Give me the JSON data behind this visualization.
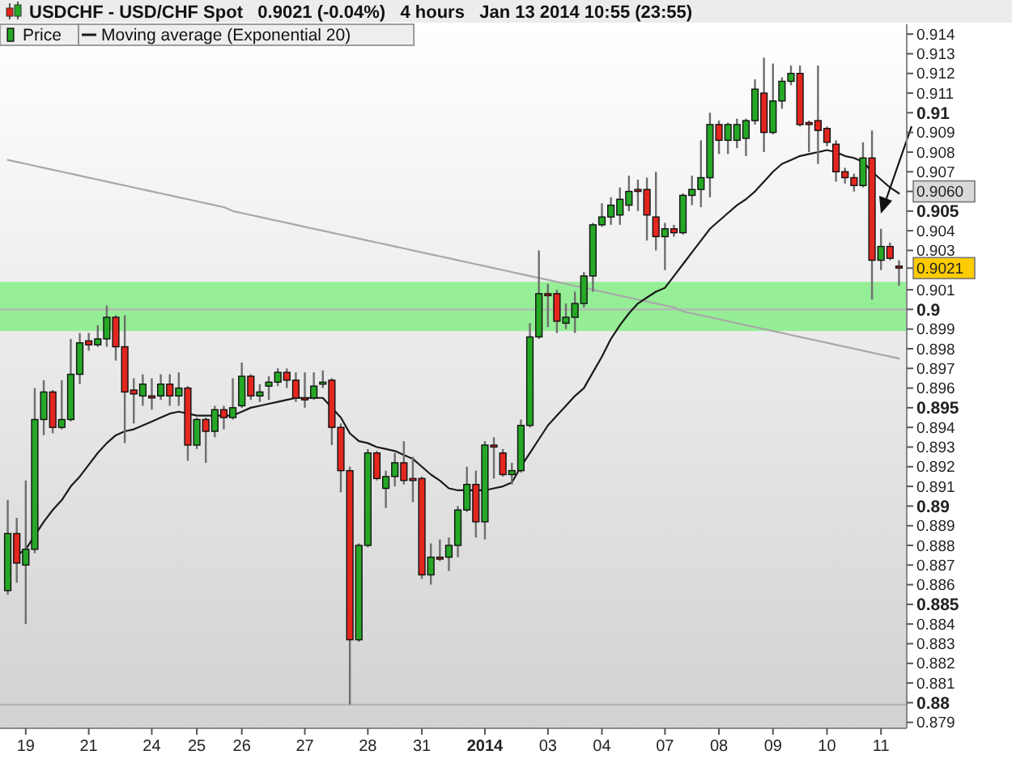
{
  "chart_data": {
    "type": "candlestick",
    "title": "USDCHF - USD/CHF Spot   0.9021 (-0.04%)   4 hours   Jan 13 2014 10:55 (23:55)",
    "legend": "top left",
    "categories": [
      null,
      null,
      "19",
      null,
      null,
      null,
      null,
      null,
      null,
      "21",
      null,
      null,
      null,
      null,
      null,
      null,
      "24",
      null,
      null,
      null,
      null,
      "25",
      null,
      null,
      null,
      null,
      "26",
      null,
      null,
      null,
      null,
      null,
      null,
      "27",
      null,
      null,
      null,
      null,
      null,
      null,
      "28",
      null,
      null,
      null,
      null,
      null,
      "31",
      null,
      null,
      null,
      null,
      null,
      null,
      "2014",
      null,
      null,
      null,
      null,
      null,
      null,
      "03",
      null,
      null,
      null,
      null,
      null,
      "04",
      null,
      null,
      null,
      null,
      null,
      null,
      "07",
      null,
      null,
      null,
      null,
      null,
      "08",
      null,
      null,
      null,
      null,
      null,
      "09",
      null,
      null,
      null,
      null,
      null,
      "10",
      null,
      null,
      null,
      null,
      null,
      "11",
      null,
      null
    ],
    "ylim": [
      0.8787,
      0.9145
    ],
    "yticks": [
      0.879,
      0.88,
      0.881,
      0.882,
      0.883,
      0.884,
      0.885,
      0.886,
      0.887,
      0.888,
      0.889,
      0.89,
      0.891,
      0.892,
      0.893,
      0.894,
      0.895,
      0.896,
      0.897,
      0.898,
      0.899,
      0.9,
      0.901,
      {
        "value": 0.9021,
        "label": "0.9021"
      },
      0.903,
      0.904,
      0.905,
      {
        "value": 0.906,
        "label": "0.9060"
      },
      0.907,
      0.908,
      0.909,
      0.91,
      0.911,
      0.912,
      0.913,
      0.914
    ],
    "bands": [
      {
        "axis": "y",
        "from": 0.8989,
        "to": 0.9014,
        "color": "#90ee90"
      }
    ],
    "ref_lines": [
      {
        "axis": "y",
        "value": 0.9,
        "color": "#b4b4b4"
      },
      {
        "axis": "y",
        "value": 0.8799,
        "color": "#b4b4b4"
      }
    ],
    "series": [
      {
        "type": "line",
        "color": "#a8a8a8",
        "values": [
          0.9076,
          0.9075,
          0.9074,
          0.9073,
          0.9072,
          0.9071,
          0.907,
          0.9069,
          0.9068,
          0.9067,
          0.9066,
          0.9065,
          0.9064,
          0.9063,
          0.9062,
          0.9061,
          0.906,
          0.9059,
          0.9058,
          0.9057,
          0.9056,
          0.9055,
          0.9054,
          0.9053,
          0.9052,
          0.905,
          0.9049,
          0.9048,
          0.9047,
          0.9046,
          0.9045,
          0.9044,
          0.9043,
          0.9042,
          0.9041,
          0.904,
          0.9039,
          0.9038,
          0.9037,
          0.9036,
          0.9035,
          0.9034,
          0.9033,
          0.9032,
          0.9031,
          0.903,
          0.9029,
          0.9028,
          0.9027,
          0.9026,
          0.9025,
          0.9024,
          0.9023,
          0.9022,
          0.9021,
          0.902,
          0.9019,
          0.9018,
          0.9017,
          0.9016,
          0.9015,
          0.9014,
          0.9013,
          0.9012,
          0.9011,
          0.901,
          0.9009,
          0.9008,
          0.9007,
          0.9006,
          0.9005,
          0.9004,
          0.9003,
          0.9002,
          0.9001,
          0.8999,
          0.8998,
          0.8997,
          0.8996,
          0.8995,
          0.8994,
          0.8993,
          0.8992,
          0.8991,
          0.899,
          0.8989,
          0.8988,
          0.8987,
          0.8986,
          0.8985,
          0.8984,
          0.8983,
          0.8982,
          0.8981,
          0.898,
          0.8979,
          0.8978,
          0.8977,
          0.8976,
          0.8975
        ]
      },
      {
        "name": "Moving average (Exponential 20)",
        "type": "line",
        "color": "#1a1a1a",
        "values": [
          null,
          0.8875,
          0.8878,
          0.8885,
          0.8892,
          0.8898,
          0.8903,
          0.891,
          0.8915,
          0.8921,
          0.8927,
          0.8932,
          0.8936,
          0.8938,
          0.8939,
          0.8941,
          0.8943,
          0.8945,
          0.8947,
          0.8948,
          0.8947,
          0.8946,
          0.8946,
          0.8946,
          0.8946,
          0.8946,
          0.8948,
          0.895,
          0.8951,
          0.8952,
          0.8953,
          0.8954,
          0.8955,
          0.8955,
          0.8955,
          0.8955,
          0.895,
          0.8945,
          0.8937,
          0.8933,
          0.8932,
          0.893,
          0.8929,
          0.8928,
          0.8926,
          0.8924,
          0.892,
          0.8916,
          0.8913,
          0.8909,
          0.8908,
          0.8908,
          0.8908,
          0.8908,
          0.8909,
          0.891,
          0.8912,
          0.892,
          0.8927,
          0.8934,
          0.8941,
          0.8946,
          0.8951,
          0.8956,
          0.896,
          0.8968,
          0.8976,
          0.8985,
          0.8992,
          0.8998,
          0.9003,
          0.9006,
          0.9009,
          0.9011,
          0.9017,
          0.9023,
          0.9029,
          0.9035,
          0.9041,
          0.9045,
          0.9049,
          0.9053,
          0.9056,
          0.906,
          0.9065,
          0.907,
          0.9074,
          0.9076,
          0.9078,
          0.9079,
          0.908,
          0.9081,
          0.908,
          0.9078,
          0.9077,
          0.9075,
          0.907,
          0.9066,
          0.9062,
          0.9059
        ]
      },
      {
        "name": "Price",
        "ohlc": [
          [
            0.8857,
            0.8903,
            0.8855,
            0.8886
          ],
          [
            0.8886,
            0.8894,
            0.8861,
            0.8871
          ],
          [
            0.887,
            0.8913,
            0.884,
            0.8878
          ],
          [
            0.8878,
            0.896,
            0.8876,
            0.8944
          ],
          [
            0.8944,
            0.8964,
            0.8936,
            0.8958
          ],
          [
            0.8958,
            0.8959,
            0.8937,
            0.894
          ],
          [
            0.894,
            0.8964,
            0.8939,
            0.8944
          ],
          [
            0.8944,
            0.8985,
            0.8943,
            0.8967
          ],
          [
            0.8967,
            0.8988,
            0.8962,
            0.8983
          ],
          [
            0.8984,
            0.8988,
            0.8979,
            0.8982
          ],
          [
            0.8982,
            0.8992,
            0.8981,
            0.8985
          ],
          [
            0.8985,
            0.9002,
            0.8981,
            0.8996
          ],
          [
            0.8996,
            0.8997,
            0.8974,
            0.8981
          ],
          [
            0.8981,
            0.8997,
            0.8932,
            0.8958
          ],
          [
            0.8959,
            0.8965,
            0.8942,
            0.8957
          ],
          [
            0.8956,
            0.8967,
            0.8951,
            0.8962
          ],
          [
            0.8956,
            0.8965,
            0.8949,
            0.8955
          ],
          [
            0.8956,
            0.8967,
            0.8954,
            0.8962
          ],
          [
            0.8962,
            0.8967,
            0.8951,
            0.8956
          ],
          [
            0.8956,
            0.8968,
            0.8951,
            0.896
          ],
          [
            0.896,
            0.8961,
            0.8923,
            0.8931
          ],
          [
            0.8931,
            0.8945,
            0.8929,
            0.8944
          ],
          [
            0.8944,
            0.8945,
            0.8922,
            0.8938
          ],
          [
            0.8938,
            0.8951,
            0.8935,
            0.8949
          ],
          [
            0.8949,
            0.8951,
            0.8939,
            0.8945
          ],
          [
            0.8945,
            0.8965,
            0.8944,
            0.895
          ],
          [
            0.8951,
            0.8973,
            0.895,
            0.8966
          ],
          [
            0.8966,
            0.8967,
            0.8954,
            0.8956
          ],
          [
            0.8956,
            0.8962,
            0.8953,
            0.8958
          ],
          [
            0.8961,
            0.8966,
            0.8954,
            0.8963
          ],
          [
            0.8963,
            0.897,
            0.8961,
            0.8968
          ],
          [
            0.8968,
            0.897,
            0.896,
            0.8964
          ],
          [
            0.8964,
            0.8968,
            0.8953,
            0.8955
          ],
          [
            0.8955,
            0.8968,
            0.895,
            0.8954
          ],
          [
            0.8955,
            0.8968,
            0.8954,
            0.8961
          ],
          [
            0.8962,
            0.8969,
            0.896,
            0.8963
          ],
          [
            0.8964,
            0.8965,
            0.8931,
            0.894
          ],
          [
            0.894,
            0.8942,
            0.8907,
            0.8918
          ],
          [
            0.8918,
            0.892,
            0.8799,
            0.8832
          ],
          [
            0.8832,
            0.8881,
            0.8831,
            0.888
          ],
          [
            0.888,
            0.8929,
            0.8879,
            0.8927
          ],
          [
            0.8927,
            0.8928,
            0.8913,
            0.8914
          ],
          [
            0.8909,
            0.8918,
            0.8899,
            0.8915
          ],
          [
            0.8915,
            0.8927,
            0.891,
            0.8922
          ],
          [
            0.8922,
            0.8933,
            0.8911,
            0.8913
          ],
          [
            0.8914,
            0.8925,
            0.8902,
            0.8913
          ],
          [
            0.8914,
            0.8915,
            0.8863,
            0.8865
          ],
          [
            0.8865,
            0.8881,
            0.886,
            0.8874
          ],
          [
            0.8874,
            0.8883,
            0.8872,
            0.8873
          ],
          [
            0.8874,
            0.8884,
            0.8867,
            0.888
          ],
          [
            0.888,
            0.89,
            0.8874,
            0.8898
          ],
          [
            0.8898,
            0.892,
            0.8897,
            0.8911
          ],
          [
            0.8911,
            0.8918,
            0.8884,
            0.8892
          ],
          [
            0.8892,
            0.8933,
            0.8883,
            0.8931
          ],
          [
            0.8931,
            0.8935,
            0.8914,
            0.893
          ],
          [
            0.8927,
            0.8929,
            0.8915,
            0.8916
          ],
          [
            0.8916,
            0.8922,
            0.8911,
            0.8918
          ],
          [
            0.8918,
            0.8944,
            0.8917,
            0.8941
          ],
          [
            0.8941,
            0.8993,
            0.894,
            0.8986
          ],
          [
            0.8986,
            0.903,
            0.8985,
            0.9008
          ],
          [
            0.9008,
            0.9013,
            0.8991,
            0.9007
          ],
          [
            0.9008,
            0.901,
            0.8988,
            0.8994
          ],
          [
            0.8993,
            0.9003,
            0.899,
            0.8996
          ],
          [
            0.8996,
            0.9009,
            0.8988,
            0.9003
          ],
          [
            0.9003,
            0.9019,
            0.9001,
            0.9017
          ],
          [
            0.9017,
            0.9044,
            0.9009,
            0.9043
          ],
          [
            0.9043,
            0.9054,
            0.9042,
            0.9047
          ],
          [
            0.9047,
            0.9057,
            0.9043,
            0.9053
          ],
          [
            0.9048,
            0.9062,
            0.9043,
            0.9056
          ],
          [
            0.9053,
            0.9068,
            0.905,
            0.906
          ],
          [
            0.9061,
            0.9066,
            0.905,
            0.906
          ],
          [
            0.9061,
            0.9067,
            0.9035,
            0.9048
          ],
          [
            0.9047,
            0.907,
            0.903,
            0.9037
          ],
          [
            0.9037,
            0.9044,
            0.902,
            0.9041
          ],
          [
            0.9041,
            0.9043,
            0.9037,
            0.9039
          ],
          [
            0.9039,
            0.9059,
            0.9038,
            0.9058
          ],
          [
            0.9058,
            0.9068,
            0.9053,
            0.9061
          ],
          [
            0.9061,
            0.9086,
            0.9052,
            0.9067
          ],
          [
            0.9067,
            0.91,
            0.9057,
            0.9094
          ],
          [
            0.9094,
            0.9096,
            0.9079,
            0.9086
          ],
          [
            0.9086,
            0.9095,
            0.9079,
            0.9094
          ],
          [
            0.9086,
            0.9097,
            0.9082,
            0.9094
          ],
          [
            0.9087,
            0.9097,
            0.9078,
            0.9096
          ],
          [
            0.9096,
            0.9117,
            0.9094,
            0.9112
          ],
          [
            0.911,
            0.9128,
            0.908,
            0.909
          ],
          [
            0.909,
            0.9125,
            0.9089,
            0.9106
          ],
          [
            0.9106,
            0.9118,
            0.9102,
            0.9116
          ],
          [
            0.9116,
            0.9124,
            0.9114,
            0.912
          ],
          [
            0.912,
            0.9124,
            0.9093,
            0.9094
          ],
          [
            0.9095,
            0.9096,
            0.908,
            0.9094
          ],
          [
            0.9096,
            0.9124,
            0.9074,
            0.9091
          ],
          [
            0.9092,
            0.9093,
            0.9083,
            0.9085
          ],
          [
            0.9084,
            0.9086,
            0.9065,
            0.907
          ],
          [
            0.907,
            0.9072,
            0.9064,
            0.9067
          ],
          [
            0.9067,
            0.9069,
            0.906,
            0.9063
          ],
          [
            0.9063,
            0.9085,
            0.9062,
            0.9077
          ],
          [
            0.9077,
            0.9091,
            0.9005,
            0.9025
          ],
          [
            0.9025,
            0.9041,
            0.902,
            0.9032
          ],
          [
            0.9032,
            0.9034,
            0.9025,
            0.9026
          ],
          [
            0.9022,
            0.9025,
            0.9012,
            0.9021
          ]
        ],
        "colors": [
          "#26a826",
          "#e3261e",
          "#26a826",
          "#26a826",
          "#26a826",
          "#e3261e",
          "#26a826",
          "#26a826",
          "#26a826",
          "#e3261e",
          "#26a826",
          "#26a826",
          "#e3261e",
          "#e3261e",
          "#e3261e",
          "#26a826",
          "#e3261e",
          "#26a826",
          "#e3261e",
          "#26a826",
          "#e3261e",
          "#26a826",
          "#e3261e",
          "#26a826",
          "#e3261e",
          "#26a826",
          "#26a826",
          "#e3261e",
          "#26a826",
          "#26a826",
          "#26a826",
          "#e3261e",
          "#e3261e",
          "#e3261e",
          "#26a826",
          "#26a826",
          "#e3261e",
          "#e3261e",
          "#e3261e",
          "#26a826",
          "#26a826",
          "#e3261e",
          "#26a826",
          "#26a826",
          "#e3261e",
          "#e3261e",
          "#e3261e",
          "#26a826",
          "#e3261e",
          "#26a826",
          "#26a826",
          "#26a826",
          "#e3261e",
          "#26a826",
          "#e3261e",
          "#e3261e",
          "#26a826",
          "#26a826",
          "#26a826",
          "#26a826",
          "#e3261e",
          "#e3261e",
          "#26a826",
          "#26a826",
          "#26a826",
          "#26a826",
          "#26a826",
          "#26a826",
          "#26a826",
          "#26a826",
          "#e3261e",
          "#e3261e",
          "#e3261e",
          "#26a826",
          "#e3261e",
          "#26a826",
          "#26a826",
          "#26a826",
          "#26a826",
          "#e3261e",
          "#26a826",
          "#26a826",
          "#26a826",
          "#26a826",
          "#e3261e",
          "#26a826",
          "#26a826",
          "#26a826",
          "#e3261e",
          "#e3261e",
          "#e3261e",
          "#e3261e",
          "#e3261e",
          "#e3261e",
          "#e3261e",
          "#26a826",
          "#e3261e",
          "#26a826",
          "#e3261e",
          "#e3261e"
        ]
      }
    ]
  }
}
